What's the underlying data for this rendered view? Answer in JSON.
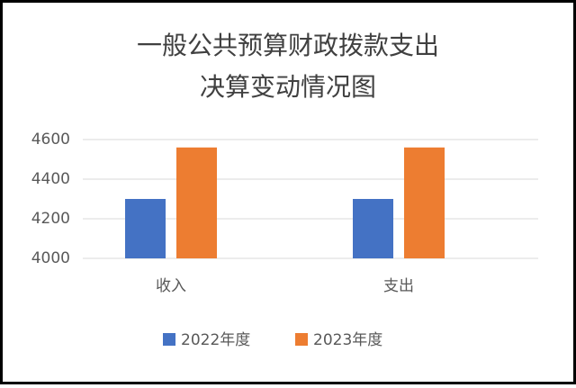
{
  "chart_data": {
    "type": "bar",
    "title": [
      "一般公共预算财政拨款支出",
      "决算变动情况图"
    ],
    "categories": [
      "收入",
      "支出"
    ],
    "series": [
      {
        "name": "2022年度",
        "color": "#4472c4",
        "values": [
          4300,
          4300
        ]
      },
      {
        "name": "2023年度",
        "color": "#ed7d31",
        "values": [
          4560,
          4560
        ]
      }
    ],
    "ylim": [
      4000,
      4600
    ],
    "yticks": [
      4000,
      4200,
      4400,
      4600
    ],
    "grid": true
  }
}
